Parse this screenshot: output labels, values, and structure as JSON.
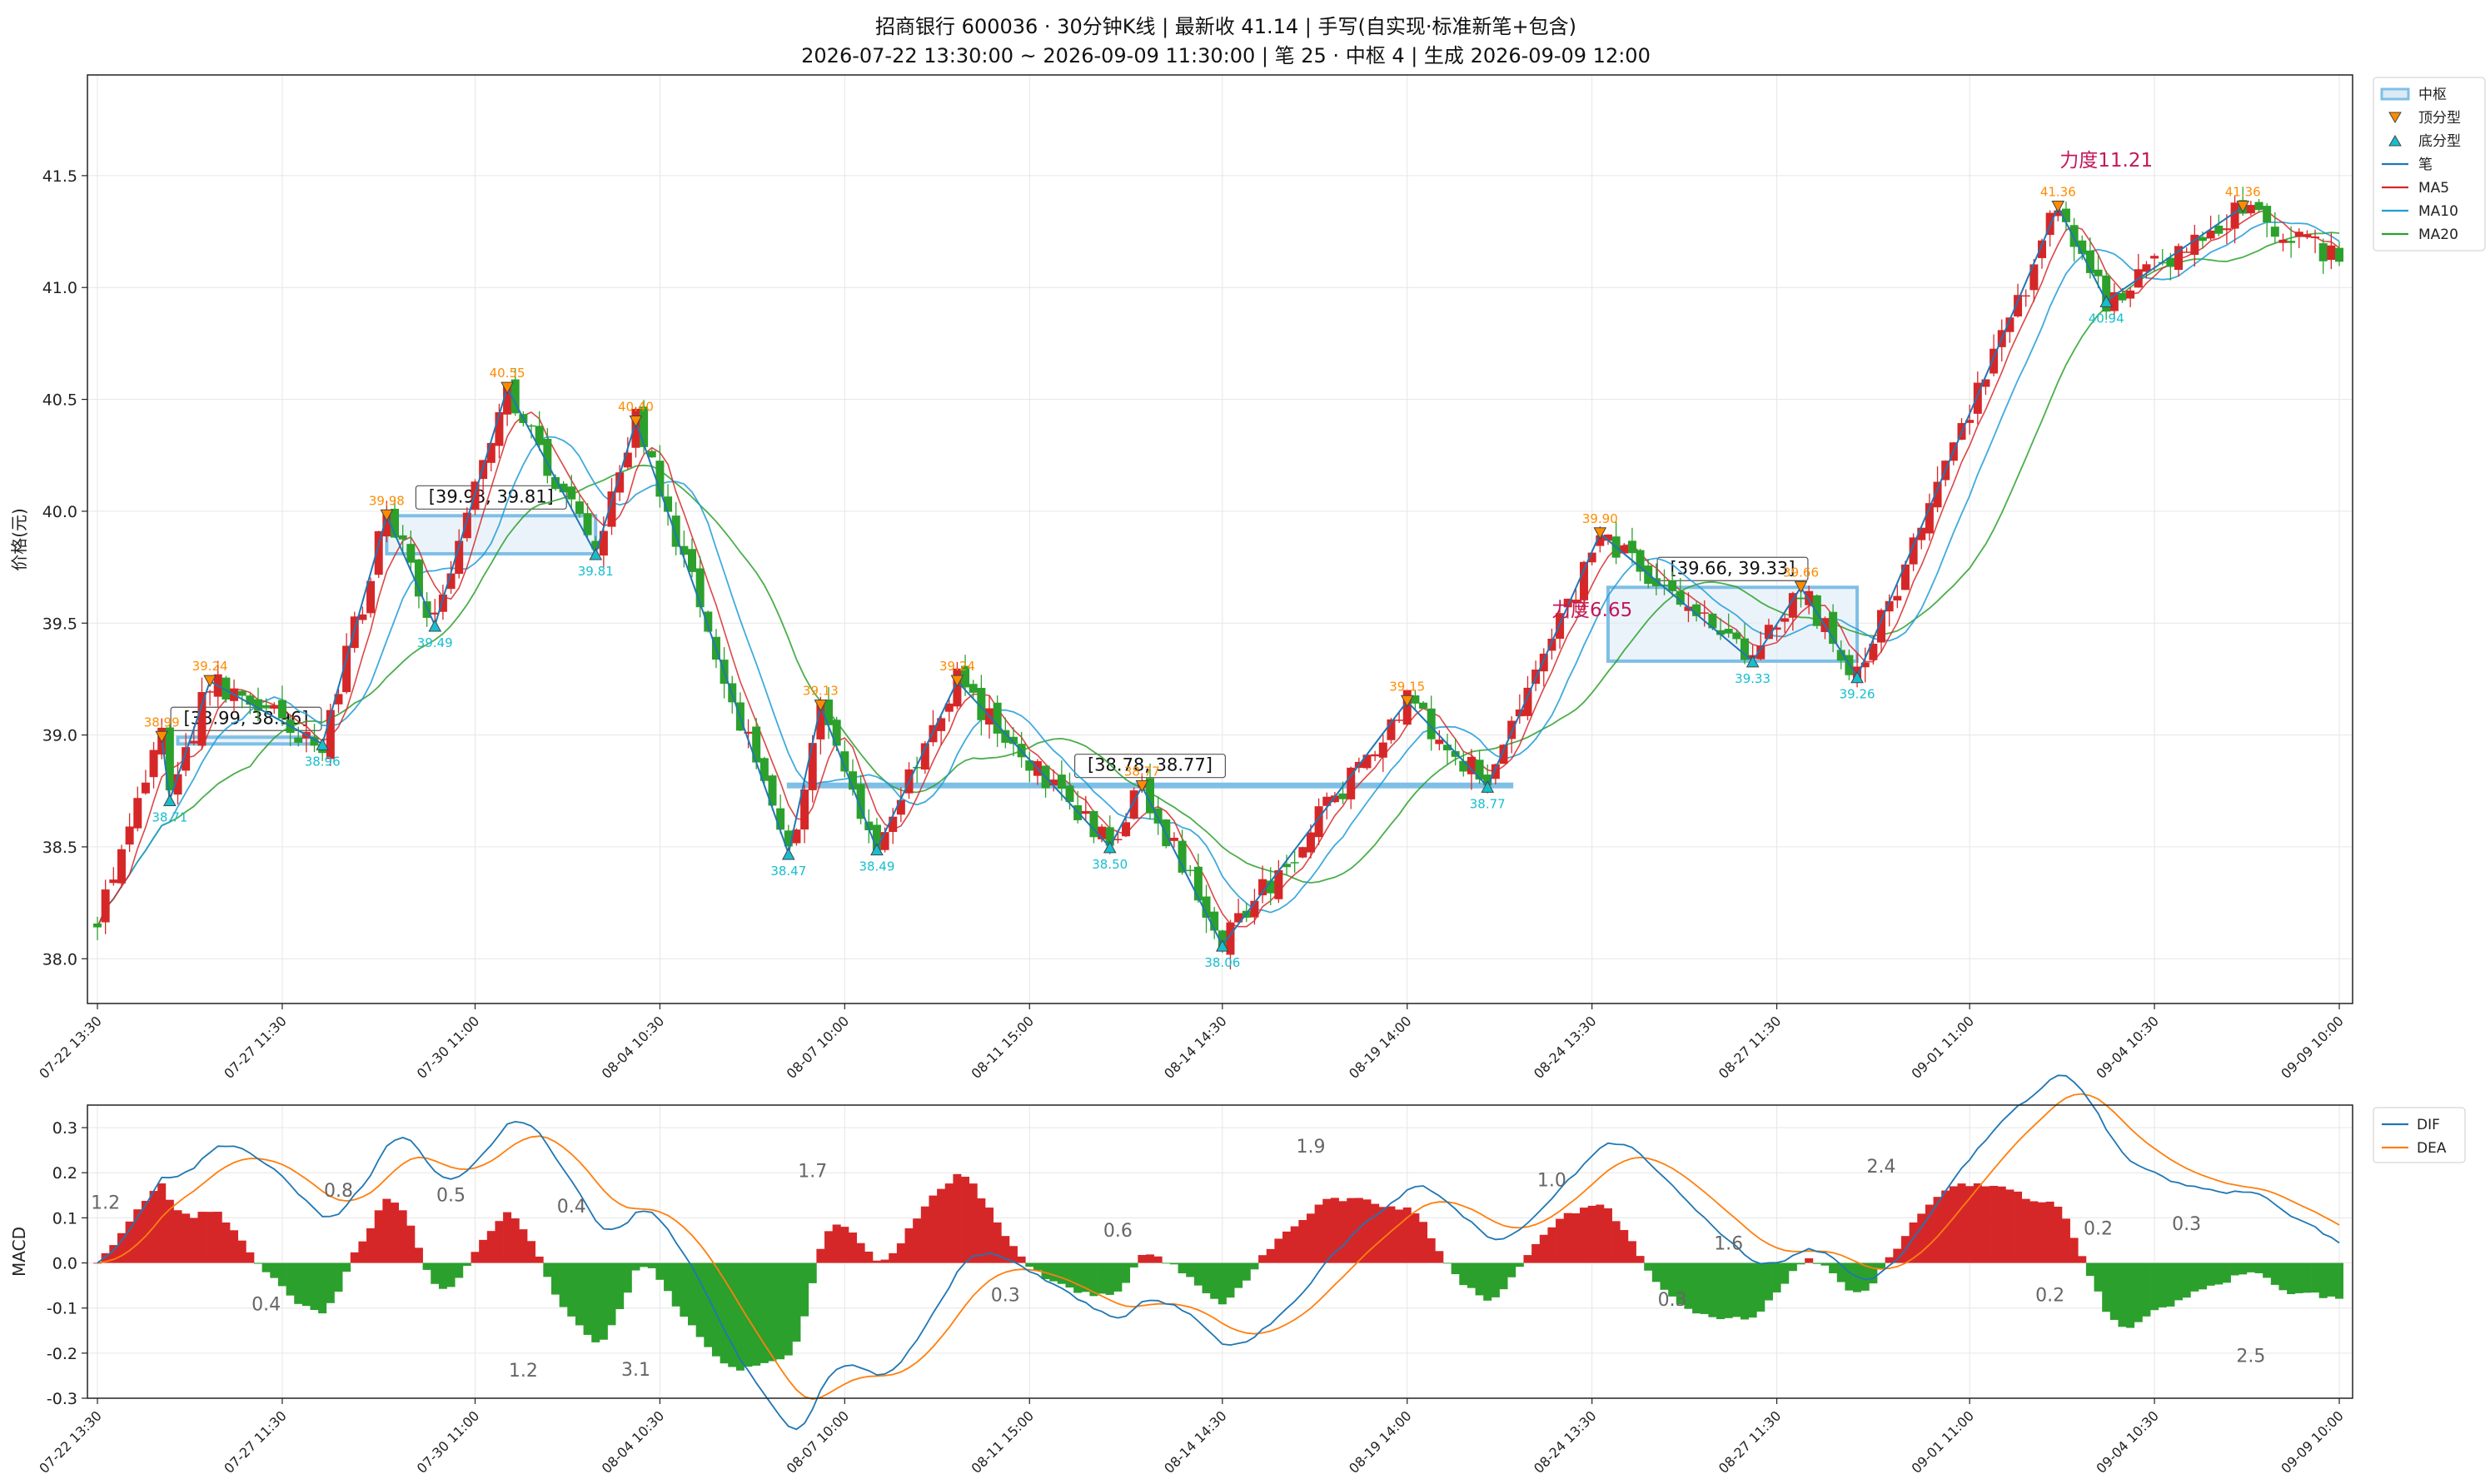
{
  "title": {
    "line1": "招商银行 600036 · 30分钟K线 | 最新收 41.14 | 手写(自实现·标准新笔+包含)",
    "line2": "2026-07-22 13:30:00 ~ 2026-09-09 11:30:00 | 笔 25 · 中枢 4 | 生成 2026-09-09 12:00"
  },
  "colors": {
    "up": "#d62728",
    "down": "#2ca02c",
    "bi": "#1f77b4",
    "ma5": "#d62728",
    "ma10": "#1f9bd7",
    "ma20": "#2ca02c",
    "top": "#ff8c00",
    "bottom": "#17becf",
    "zs_edge": "#7fbfe6",
    "dif": "#1f77b4",
    "dea": "#ff7f0e",
    "force": "#c2185b",
    "note": "#666666"
  },
  "chart_data": [
    {
      "type": "candlestick",
      "ylabel": "价格(元)",
      "ylim": [
        37.8,
        41.95
      ],
      "yticks": [
        "38.0",
        "38.5",
        "39.0",
        "39.5",
        "40.0",
        "40.5",
        "41.0",
        "41.5"
      ],
      "xtick_labels": [
        "07-22 13:30",
        "07-27 11:30",
        "07-30 11:00",
        "08-04 10:30",
        "08-07 10:00",
        "08-11 15:00",
        "08-14 14:30",
        "08-19 14:00",
        "08-24 13:30",
        "08-27 11:30",
        "09-01 11:00",
        "09-04 10:30",
        "09-09 10:00"
      ],
      "bar_count": 280,
      "legend": [
        {
          "label": "中枢",
          "kind": "zs"
        },
        {
          "label": "顶分型",
          "kind": "top"
        },
        {
          "label": "底分型",
          "kind": "bottom"
        },
        {
          "label": "笔",
          "kind": "bi"
        },
        {
          "label": "MA5",
          "kind": "ma5"
        },
        {
          "label": "MA10",
          "kind": "ma10"
        },
        {
          "label": "MA20",
          "kind": "ma20"
        }
      ],
      "bi_points": [
        {
          "i": 8,
          "p": 38.99,
          "t": "top"
        },
        {
          "i": 9,
          "p": 38.71,
          "t": "bottom"
        },
        {
          "i": 14,
          "p": 39.24,
          "t": "top"
        },
        {
          "i": 28,
          "p": 38.96,
          "t": "bottom"
        },
        {
          "i": 36,
          "p": 39.98,
          "t": "top"
        },
        {
          "i": 42,
          "p": 39.49,
          "t": "bottom"
        },
        {
          "i": 51,
          "p": 40.55,
          "t": "top"
        },
        {
          "i": 62,
          "p": 39.81,
          "t": "bottom"
        },
        {
          "i": 67,
          "p": 40.4,
          "t": "top"
        },
        {
          "i": 86,
          "p": 38.47,
          "t": "bottom"
        },
        {
          "i": 90,
          "p": 39.13,
          "t": "top"
        },
        {
          "i": 97,
          "p": 38.49,
          "t": "bottom"
        },
        {
          "i": 107,
          "p": 39.24,
          "t": "top"
        },
        {
          "i": 126,
          "p": 38.5,
          "t": "bottom"
        },
        {
          "i": 130,
          "p": 38.77,
          "t": "top"
        },
        {
          "i": 140,
          "p": 38.06,
          "t": "bottom"
        },
        {
          "i": 163,
          "p": 39.15,
          "t": "top"
        },
        {
          "i": 173,
          "p": 38.77,
          "t": "bottom"
        },
        {
          "i": 187,
          "p": 39.9,
          "t": "top"
        },
        {
          "i": 206,
          "p": 39.33,
          "t": "bottom"
        },
        {
          "i": 212,
          "p": 39.66,
          "t": "top"
        },
        {
          "i": 219,
          "p": 39.26,
          "t": "bottom"
        },
        {
          "i": 244,
          "p": 41.36,
          "t": "top"
        },
        {
          "i": 250,
          "p": 40.94,
          "t": "bottom"
        },
        {
          "i": 267,
          "p": 41.36,
          "t": "top"
        }
      ],
      "zhongshu": [
        {
          "start": 10,
          "end": 27,
          "high": 38.99,
          "low": 38.96,
          "label": "[38.99, 38.96]"
        },
        {
          "start": 36,
          "end": 62,
          "high": 39.98,
          "low": 39.81,
          "label": "[39.98, 39.81]"
        },
        {
          "start": 86,
          "end": 176,
          "high": 38.78,
          "low": 38.77,
          "label": "[38.78, 38.77]"
        },
        {
          "start": 188,
          "end": 219,
          "high": 39.66,
          "low": 39.33,
          "label": "[39.66, 39.33]"
        }
      ],
      "force_labels": [
        {
          "i": 186,
          "p": 39.53,
          "text": "力度6.65"
        },
        {
          "i": 250,
          "p": 41.54,
          "text": "力度11.21"
        }
      ]
    },
    {
      "type": "macd",
      "ylabel": "MACD",
      "ylim": [
        -0.3,
        0.35
      ],
      "yticks": [
        "0.3",
        "0.2",
        "0.1",
        "0.0",
        "-0.1",
        "-0.2",
        "-0.3"
      ],
      "legend": [
        "DIF",
        "DEA"
      ],
      "notes": [
        {
          "i": 1,
          "v": 0.12,
          "text": "1.2"
        },
        {
          "i": 21,
          "v": -0.105,
          "text": "0.4"
        },
        {
          "i": 30,
          "v": 0.147,
          "text": "0.8"
        },
        {
          "i": 44,
          "v": 0.137,
          "text": "0.5"
        },
        {
          "i": 53,
          "v": -0.252,
          "text": "1.2"
        },
        {
          "i": 59,
          "v": 0.112,
          "text": "0.4"
        },
        {
          "i": 67,
          "v": -0.25,
          "text": "3.1"
        },
        {
          "i": 89,
          "v": 0.19,
          "text": "1.7"
        },
        {
          "i": 113,
          "v": -0.085,
          "text": "0.3"
        },
        {
          "i": 127,
          "v": 0.058,
          "text": "0.6"
        },
        {
          "i": 151,
          "v": 0.245,
          "text": "1.9"
        },
        {
          "i": 181,
          "v": 0.17,
          "text": "1.0"
        },
        {
          "i": 196,
          "v": -0.095,
          "text": "0.3"
        },
        {
          "i": 203,
          "v": 0.03,
          "text": "1.6"
        },
        {
          "i": 222,
          "v": 0.2,
          "text": "2.4"
        },
        {
          "i": 243,
          "v": -0.085,
          "text": "0.2"
        },
        {
          "i": 249,
          "v": 0.063,
          "text": "0.2"
        },
        {
          "i": 260,
          "v": 0.073,
          "text": "0.3"
        },
        {
          "i": 268,
          "v": -0.22,
          "text": "2.5"
        }
      ]
    }
  ]
}
